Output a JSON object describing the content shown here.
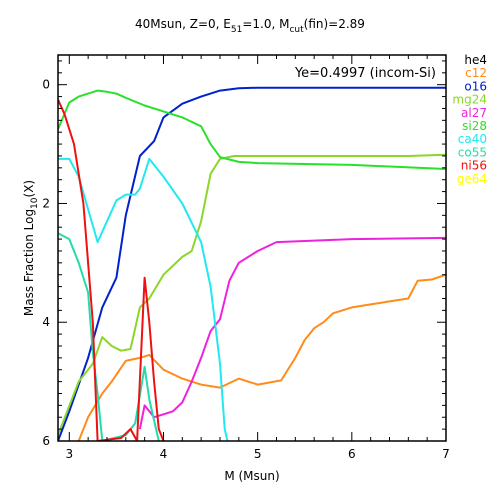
{
  "chart_data": {
    "type": "line",
    "title_parts": {
      "lead": "40Msun, Z=0, E",
      "sub1": "51",
      "mid": "=1.0, M",
      "sub2": "cut",
      "tail": "(fin)=2.89"
    },
    "annotation": "Ye=0.4997 (incom-Si)",
    "xlabel": "M (Msun)",
    "ylabel_parts": {
      "lead": "Mass Fraction Log",
      "sub": "10",
      "tail": "(X)"
    },
    "xlim": [
      2.88,
      7.0
    ],
    "ylim": [
      -6,
      0.5
    ],
    "x_ticks": [
      3,
      4,
      5,
      6,
      7
    ],
    "y_ticks": [
      0,
      -2,
      -4,
      -6
    ],
    "x_tick_labels": [
      "3",
      "4",
      "5",
      "6",
      "7"
    ],
    "y_tick_labels": [
      "0",
      "2",
      "4",
      "6"
    ],
    "legend_placement": "right",
    "series": [
      {
        "name": "he4",
        "color": "#000000",
        "points": []
      },
      {
        "name": "c12",
        "color": "#ff8c1a",
        "points": [
          [
            3.1,
            -6.0
          ],
          [
            3.2,
            -5.6
          ],
          [
            3.35,
            -5.2
          ],
          [
            3.45,
            -5.0
          ],
          [
            3.6,
            -4.65
          ],
          [
            3.75,
            -4.6
          ],
          [
            3.85,
            -4.55
          ],
          [
            4.0,
            -4.8
          ],
          [
            4.2,
            -4.95
          ],
          [
            4.4,
            -5.05
          ],
          [
            4.6,
            -5.1
          ],
          [
            4.8,
            -4.95
          ],
          [
            5.0,
            -5.05
          ],
          [
            5.25,
            -4.98
          ],
          [
            5.4,
            -4.6
          ],
          [
            5.5,
            -4.3
          ],
          [
            5.6,
            -4.1
          ],
          [
            5.7,
            -4.0
          ],
          [
            5.8,
            -3.85
          ],
          [
            6.0,
            -3.75
          ],
          [
            6.2,
            -3.7
          ],
          [
            6.4,
            -3.65
          ],
          [
            6.6,
            -3.6
          ],
          [
            6.7,
            -3.3
          ],
          [
            6.85,
            -3.28
          ],
          [
            7.0,
            -3.2
          ]
        ]
      },
      {
        "name": "o16",
        "color": "#0022cc",
        "points": [
          [
            2.88,
            -6.0
          ],
          [
            3.0,
            -5.5
          ],
          [
            3.2,
            -4.6
          ],
          [
            3.35,
            -3.75
          ],
          [
            3.5,
            -3.25
          ],
          [
            3.6,
            -2.2
          ],
          [
            3.75,
            -1.2
          ],
          [
            3.9,
            -0.95
          ],
          [
            4.0,
            -0.55
          ],
          [
            4.2,
            -0.32
          ],
          [
            4.4,
            -0.2
          ],
          [
            4.6,
            -0.1
          ],
          [
            4.8,
            -0.06
          ],
          [
            5.0,
            -0.05
          ],
          [
            6.0,
            -0.05
          ],
          [
            7.0,
            -0.05
          ]
        ]
      },
      {
        "name": "mg24",
        "color": "#8cd62a",
        "points": [
          [
            2.88,
            -5.9
          ],
          [
            3.1,
            -5.0
          ],
          [
            3.25,
            -4.7
          ],
          [
            3.35,
            -4.25
          ],
          [
            3.45,
            -4.4
          ],
          [
            3.55,
            -4.48
          ],
          [
            3.65,
            -4.45
          ],
          [
            3.75,
            -3.75
          ],
          [
            3.85,
            -3.6
          ],
          [
            4.0,
            -3.2
          ],
          [
            4.2,
            -2.9
          ],
          [
            4.3,
            -2.8
          ],
          [
            4.4,
            -2.3
          ],
          [
            4.5,
            -1.5
          ],
          [
            4.6,
            -1.25
          ],
          [
            4.75,
            -1.2
          ],
          [
            5.0,
            -1.2
          ],
          [
            6.0,
            -1.2
          ],
          [
            6.6,
            -1.2
          ],
          [
            7.0,
            -1.18
          ]
        ]
      },
      {
        "name": "al27",
        "color": "#ee22dd",
        "points": [
          [
            3.75,
            -5.8
          ],
          [
            3.8,
            -5.4
          ],
          [
            3.9,
            -5.6
          ],
          [
            4.0,
            -5.55
          ],
          [
            4.1,
            -5.5
          ],
          [
            4.2,
            -5.35
          ],
          [
            4.3,
            -5.0
          ],
          [
            4.4,
            -4.6
          ],
          [
            4.5,
            -4.15
          ],
          [
            4.6,
            -3.95
          ],
          [
            4.7,
            -3.3
          ],
          [
            4.8,
            -3.0
          ],
          [
            5.0,
            -2.8
          ],
          [
            5.2,
            -2.65
          ],
          [
            6.0,
            -2.6
          ],
          [
            7.0,
            -2.58
          ]
        ]
      },
      {
        "name": "si28",
        "color": "#2be02b",
        "points": [
          [
            2.88,
            -0.75
          ],
          [
            3.0,
            -0.3
          ],
          [
            3.1,
            -0.2
          ],
          [
            3.3,
            -0.1
          ],
          [
            3.4,
            -0.12
          ],
          [
            3.5,
            -0.15
          ],
          [
            3.6,
            -0.22
          ],
          [
            3.8,
            -0.35
          ],
          [
            4.0,
            -0.45
          ],
          [
            4.2,
            -0.55
          ],
          [
            4.4,
            -0.7
          ],
          [
            4.5,
            -1.0
          ],
          [
            4.6,
            -1.22
          ],
          [
            4.8,
            -1.3
          ],
          [
            5.0,
            -1.32
          ],
          [
            6.0,
            -1.35
          ],
          [
            7.0,
            -1.42
          ]
        ]
      },
      {
        "name": "ca40",
        "color": "#22e8f0",
        "points": [
          [
            2.88,
            -1.25
          ],
          [
            3.0,
            -1.25
          ],
          [
            3.1,
            -1.55
          ],
          [
            3.3,
            -2.65
          ],
          [
            3.4,
            -2.3
          ],
          [
            3.5,
            -1.95
          ],
          [
            3.6,
            -1.85
          ],
          [
            3.7,
            -1.85
          ],
          [
            3.75,
            -1.75
          ],
          [
            3.85,
            -1.25
          ],
          [
            4.0,
            -1.55
          ],
          [
            4.2,
            -2.0
          ],
          [
            4.4,
            -2.65
          ],
          [
            4.5,
            -3.4
          ],
          [
            4.6,
            -4.7
          ],
          [
            4.65,
            -5.8
          ],
          [
            4.68,
            -6.0
          ]
        ]
      },
      {
        "name": "co55",
        "color": "#22ddaa",
        "points": [
          [
            2.88,
            -2.5
          ],
          [
            3.0,
            -2.6
          ],
          [
            3.1,
            -3.0
          ],
          [
            3.2,
            -3.5
          ],
          [
            3.25,
            -4.5
          ],
          [
            3.3,
            -5.2
          ],
          [
            3.35,
            -6.0
          ],
          [
            3.6,
            -5.9
          ],
          [
            3.7,
            -5.7
          ],
          [
            3.8,
            -4.75
          ],
          [
            3.85,
            -5.3
          ],
          [
            3.95,
            -6.0
          ]
        ]
      },
      {
        "name": "ni56",
        "color": "#ee1111",
        "points": [
          [
            2.88,
            -0.25
          ],
          [
            2.95,
            -0.5
          ],
          [
            3.05,
            -1.0
          ],
          [
            3.15,
            -2.0
          ],
          [
            3.2,
            -3.0
          ],
          [
            3.25,
            -4.0
          ],
          [
            3.3,
            -6.0
          ],
          [
            3.55,
            -5.95
          ],
          [
            3.65,
            -5.8
          ],
          [
            3.72,
            -6.0
          ],
          [
            3.8,
            -3.25
          ],
          [
            3.85,
            -4.0
          ],
          [
            3.9,
            -5.0
          ],
          [
            3.95,
            -5.8
          ],
          [
            4.0,
            -6.0
          ]
        ]
      },
      {
        "name": "ge64",
        "color": "#ffff00",
        "points": []
      }
    ]
  }
}
